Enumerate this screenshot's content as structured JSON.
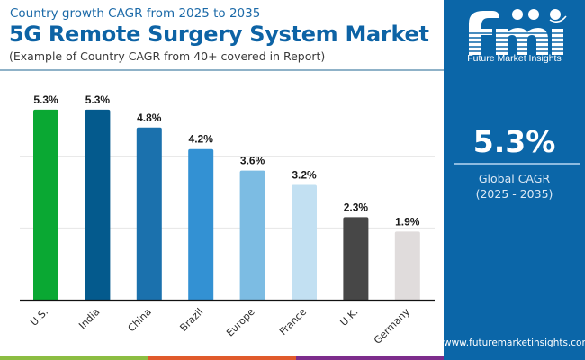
{
  "header": {
    "subtitle": "Country growth CAGR from 2025 to 2035",
    "title": "5G Remote Surgery System Market",
    "note": "(Example of Country CAGR from 40+ covered in Report)"
  },
  "sidebar": {
    "logo_icon": "fmi-logo-icon",
    "logo_text": "Future Market Insights",
    "global_value": "5.3%",
    "global_label": "Global CAGR",
    "global_period": "(2025 - 2035)",
    "url": "www.futuremarketinsights.com",
    "background_color": "#0b66a8"
  },
  "footer_stripe_colors": [
    "#8cbd42",
    "#e05a2b",
    "#7d2d8c"
  ],
  "chart_data": {
    "type": "bar",
    "title": "5G Remote Surgery System Market",
    "subtitle": "Country growth CAGR from 2025 to 2035",
    "xlabel": "",
    "ylabel": "",
    "categories": [
      "U.S.",
      "India",
      "China",
      "Brazil",
      "Europe",
      "France",
      "U.K.",
      "Germany"
    ],
    "values": [
      5.3,
      5.3,
      4.8,
      4.2,
      3.6,
      3.2,
      2.3,
      1.9
    ],
    "labels": [
      "5.3%",
      "5.3%",
      "4.8%",
      "4.2%",
      "3.6%",
      "3.2%",
      "2.3%",
      "1.9%"
    ],
    "colors": [
      "#0aa833",
      "#045a8d",
      "#1b71ad",
      "#3391d3",
      "#7cbce3",
      "#c2e0f2",
      "#474747",
      "#e0dcdc"
    ],
    "unit": "%",
    "ylim": [
      0,
      6
    ],
    "gridlines": [
      2,
      4
    ],
    "grid": true,
    "legend": "none",
    "y_tick_labels_shown": false
  }
}
